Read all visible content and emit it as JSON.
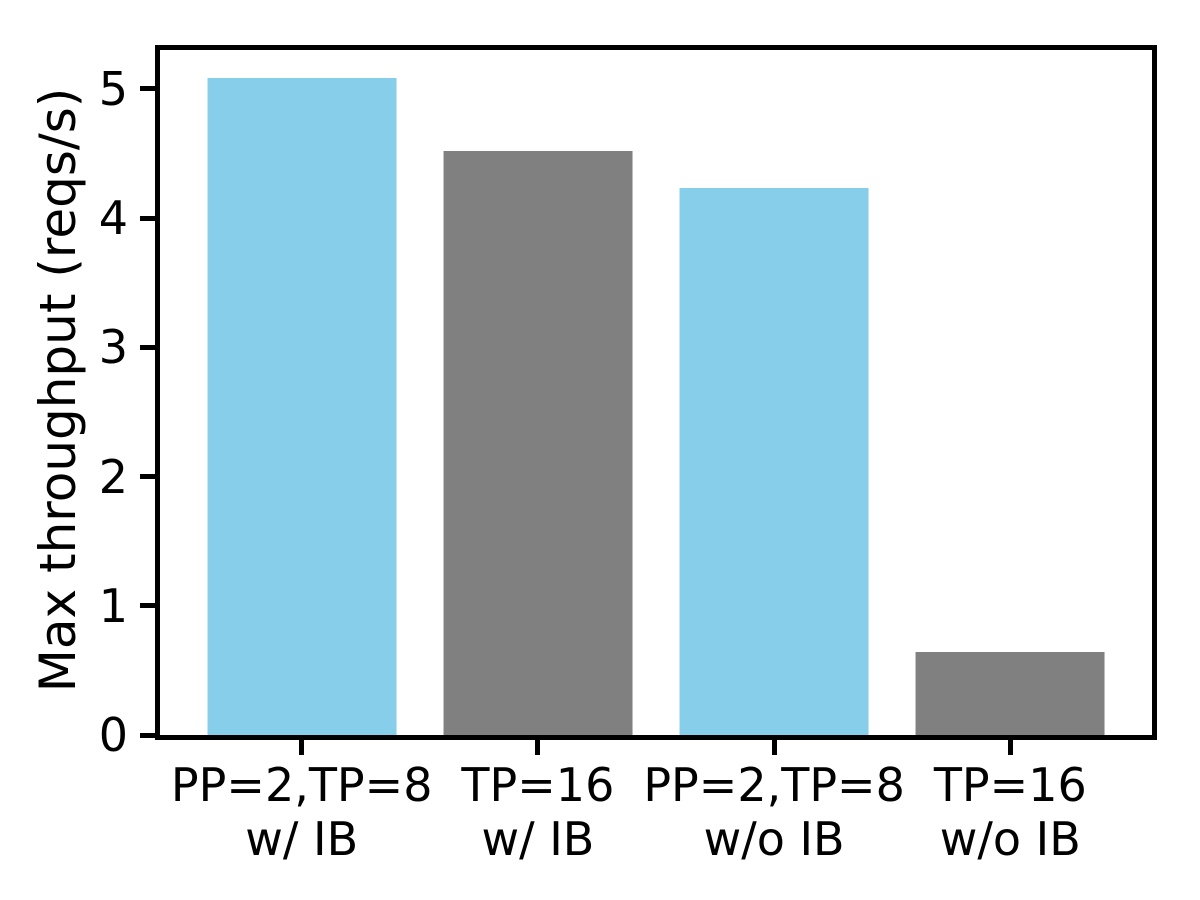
{
  "chart_data": {
    "type": "bar",
    "title": "",
    "categories": [
      "PP=2,TP=8\nw/ IB",
      "TP=16\nw/ IB",
      "PP=2,TP=8\nw/o IB",
      "TP=16\nw/o IB"
    ],
    "values": [
      5.08,
      4.52,
      4.23,
      0.64
    ],
    "bar_colors": [
      "#87CEEB",
      "#808080",
      "#87CEEB",
      "#808080"
    ],
    "xlabel": "",
    "ylabel": "Max throughput (reqs/s)",
    "yticks": [
      0,
      1,
      2,
      3,
      4,
      5
    ],
    "ylim": [
      0,
      5.3
    ],
    "grid": false,
    "legend_position": "none",
    "axis_color": "#000000",
    "background_color": "#ffffff"
  }
}
